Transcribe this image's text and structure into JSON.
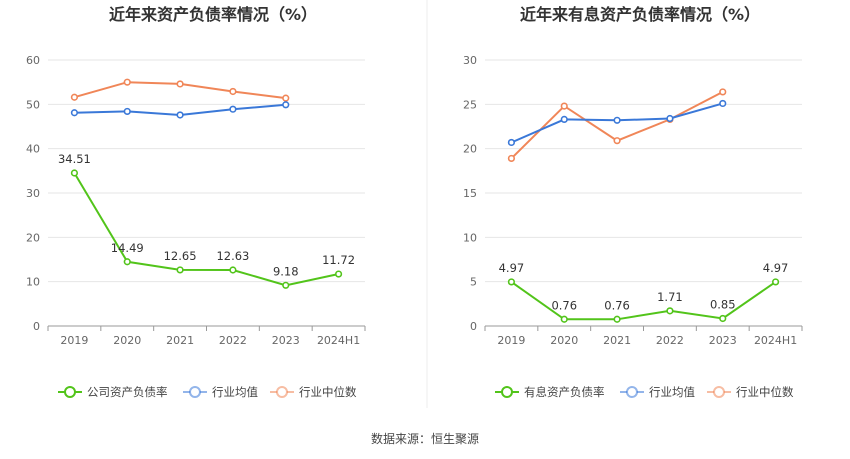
{
  "footer": {
    "source": "数据来源：恒生聚源"
  },
  "chart_data": [
    {
      "type": "line",
      "title": "近年来资产负债率情况（%）",
      "categories": [
        "2019",
        "2020",
        "2021",
        "2022",
        "2023",
        "2024H1"
      ],
      "ylim": [
        0,
        60
      ],
      "yticks": [
        0,
        10,
        20,
        30,
        40,
        50,
        60
      ],
      "grid": true,
      "legend_position": "bottom",
      "series": [
        {
          "name": "公司资产负债率",
          "color": "#52c41a",
          "show_labels": true,
          "values": [
            34.51,
            14.49,
            12.65,
            12.63,
            9.18,
            11.72
          ]
        },
        {
          "name": "行业均值",
          "color": "#3a78d8",
          "show_labels": false,
          "values": [
            48.1,
            48.4,
            47.6,
            48.9,
            49.9,
            null
          ]
        },
        {
          "name": "行业中位数",
          "color": "#f08658",
          "show_labels": false,
          "values": [
            51.6,
            55.0,
            54.6,
            52.9,
            51.4,
            null
          ]
        }
      ]
    },
    {
      "type": "line",
      "title": "近年来有息资产负债率情况（%）",
      "categories": [
        "2019",
        "2020",
        "2021",
        "2022",
        "2023",
        "2024H1"
      ],
      "ylim": [
        0,
        30
      ],
      "yticks": [
        0,
        5,
        10,
        15,
        20,
        25,
        30
      ],
      "grid": true,
      "legend_position": "bottom",
      "series": [
        {
          "name": "有息资产负债率",
          "color": "#52c41a",
          "show_labels": true,
          "values": [
            4.97,
            0.76,
            0.76,
            1.71,
            0.85,
            4.97
          ]
        },
        {
          "name": "行业均值",
          "color": "#3a78d8",
          "show_labels": false,
          "values": [
            20.7,
            23.3,
            23.2,
            23.4,
            25.1,
            null
          ]
        },
        {
          "name": "行业中位数",
          "color": "#f08658",
          "show_labels": false,
          "values": [
            18.9,
            24.8,
            20.9,
            23.3,
            26.4,
            null
          ]
        }
      ]
    }
  ]
}
